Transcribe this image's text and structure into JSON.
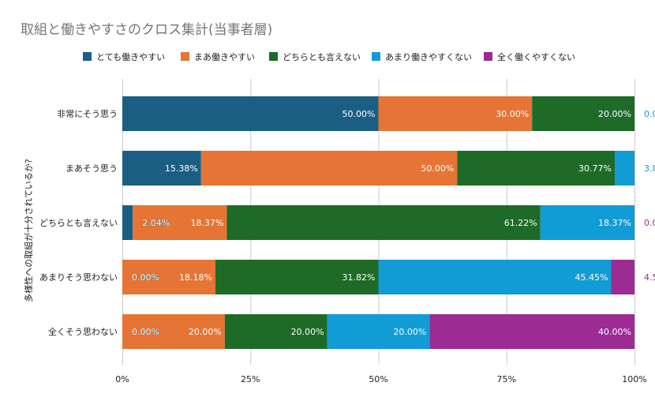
{
  "chart_data": {
    "type": "bar",
    "orientation": "horizontal",
    "stacked": "percent",
    "title": "取組と働きやすさのクロス集計(当事者層)",
    "ylabel": "多様性への取組が十分されているか?",
    "xlabel": "",
    "xlim": [
      0,
      100
    ],
    "x_ticks": [
      "0%",
      "25%",
      "50%",
      "75%",
      "100%"
    ],
    "x_tick_values": [
      0,
      25,
      50,
      75,
      100
    ],
    "grid": true,
    "legend_position": "top",
    "categories": [
      "非常にそう思う",
      "まあそう思う",
      "どちらとも言えない",
      "あまりそう思わない",
      "全くそう思わない"
    ],
    "series": [
      {
        "name": "とても働きやすい",
        "color": "#1b5e83",
        "values": [
          50.0,
          15.38,
          2.04,
          0.0,
          0.0
        ],
        "labels": [
          "50.00%",
          "15.38%",
          "2.04%",
          "0.00%",
          "0.00%"
        ]
      },
      {
        "name": "まあ働きやすい",
        "color": "#e67434",
        "values": [
          30.0,
          50.0,
          18.37,
          18.18,
          20.0
        ],
        "labels": [
          "30.00%",
          "50.00%",
          "18.37%",
          "18.18%",
          "20.00%"
        ]
      },
      {
        "name": "どちらとも言えない",
        "color": "#1e6b28",
        "values": [
          20.0,
          30.77,
          61.22,
          31.82,
          20.0
        ],
        "labels": [
          "20.00%",
          "30.77%",
          "61.22%",
          "31.82%",
          "20.00%"
        ]
      },
      {
        "name": "あまり働きやすくない",
        "color": "#129cd6",
        "values": [
          0.0,
          3.85,
          18.37,
          45.45,
          20.0
        ],
        "labels": [
          "0.0",
          "3.8",
          "18.37%",
          "45.45%",
          "20.00%"
        ]
      },
      {
        "name": "全く働くやすくない",
        "color": "#9c2b93",
        "values": [
          0.0,
          0.0,
          0.0,
          4.55,
          40.0
        ],
        "labels": [
          "",
          "",
          "0.0",
          "4.5",
          "40.00%"
        ]
      }
    ]
  }
}
